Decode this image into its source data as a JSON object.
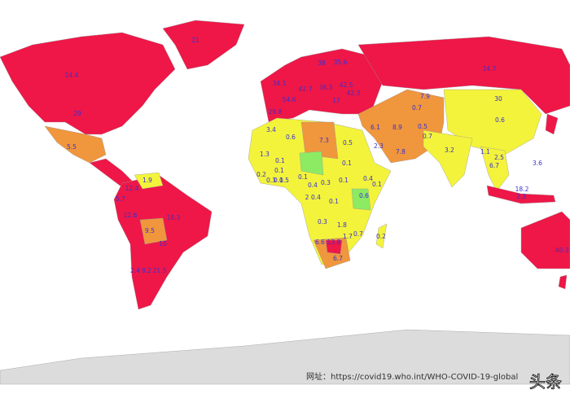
{
  "map": {
    "labels": [
      "21",
      "14.4",
      "29",
      "5.5",
      "12.4",
      "1.9",
      "5.7",
      "12.6",
      "9.5",
      "18.3",
      "10",
      "2.4",
      "9.2",
      "21.5",
      "38",
      "35.6",
      "34.1",
      "42.7",
      "38.3",
      "42.5",
      "54.6",
      "17",
      "42.3",
      "29.8",
      "14.7",
      "30",
      "0.7",
      "7.9",
      "6.1",
      "8.9",
      "0.5",
      "0.7",
      "0.6",
      "2.3",
      "7.8",
      "3.2",
      "1.1",
      "2.5",
      "6.7",
      "3.6",
      "18.2",
      "2.3",
      "3.4",
      "0.6",
      "7.3",
      "0.5",
      "1.3",
      "0.1",
      "0.1",
      "0.1",
      "0.2",
      "0.3",
      "0.5",
      "0.1",
      "0.1",
      "0.4",
      "0.1",
      "0.4",
      "0.3",
      "0.1",
      "2",
      "0.4",
      "0.1",
      "0.6",
      "0.3",
      "1.8",
      "1.7",
      "0.7",
      "0.2",
      "6.6",
      "13.8",
      "6.7",
      "40.3"
    ],
    "footer": "网址：https://covid19.who.int/WHO-COVID-19-global",
    "watermark": "头条"
  }
}
